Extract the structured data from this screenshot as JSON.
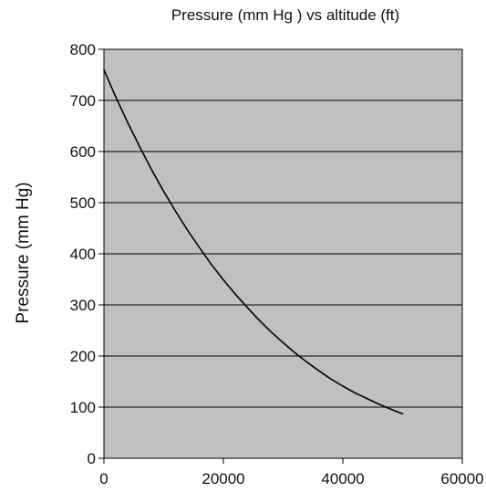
{
  "chart_data": {
    "type": "line",
    "title": "Pressure (mm Hg ) vs  altitude (ft)",
    "xlabel": "",
    "ylabel": "Pressure (mm Hg)",
    "xlim": [
      0,
      60000
    ],
    "ylim": [
      0,
      800
    ],
    "x_ticks": [
      0,
      20000,
      40000,
      60000
    ],
    "y_ticks": [
      0,
      100,
      200,
      300,
      400,
      500,
      600,
      700,
      800
    ],
    "grid": "horizontal",
    "legend": "none",
    "series": [
      {
        "x": [
          0,
          2000,
          4000,
          6000,
          8000,
          10000,
          12000,
          14000,
          16000,
          18000,
          20000,
          22000,
          24000,
          26000,
          28000,
          30000,
          32000,
          34000,
          36000,
          38000,
          40000,
          42000,
          44000,
          46000,
          48000,
          50000
        ],
        "y": [
          760,
          706,
          656,
          609,
          564,
          522,
          483,
          446,
          412,
          379,
          349,
          321,
          295,
          270,
          247,
          226,
          206,
          188,
          171,
          155,
          141,
          128,
          117,
          106,
          96,
          87
        ]
      }
    ]
  },
  "colors": {
    "plot_background": "#c0c0c0",
    "gridline": "#000000",
    "line": "#000000",
    "axis": "#000000"
  }
}
